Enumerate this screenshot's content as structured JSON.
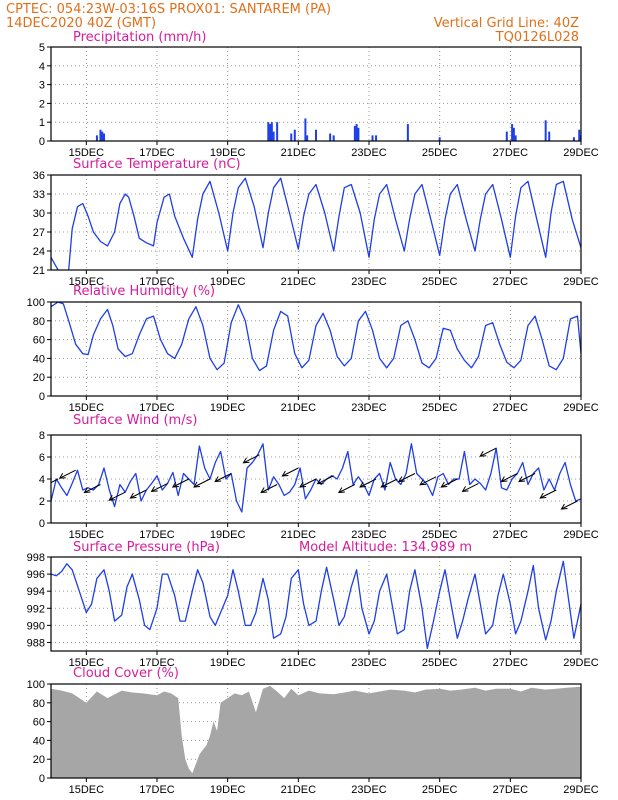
{
  "header": {
    "left_line1": "CPTEC:   054:23W-03:16S   PROX01: SANTAREM (PA)",
    "left_line2": "14DEC2020  40Z (GMT)",
    "right_line2": "Vertical Grid Line: 40Z",
    "right_line3": "TQ0126L028"
  },
  "colors": {
    "header": "#e0701a",
    "title": "#d81b9b",
    "series": "#1f3fe6",
    "cloud": "#a6a6a6",
    "grid": "#999999"
  },
  "x_axis": {
    "start_day": 14,
    "end_day": 29,
    "tick_days": [
      15,
      17,
      19,
      21,
      23,
      25,
      27,
      29
    ],
    "tick_labels": [
      "15DEC",
      "17DEC",
      "19DEC",
      "21DEC",
      "23DEC",
      "25DEC",
      "27DEC",
      "29DEC"
    ]
  },
  "chart_data": [
    {
      "type": "bar",
      "title": "Precipitation (mm/h)",
      "ylim": [
        0,
        5
      ],
      "yticks": [
        0,
        1,
        2,
        3,
        4,
        5
      ],
      "grid": true,
      "x": [
        15.3,
        15.4,
        15.45,
        15.5,
        20.15,
        20.2,
        20.25,
        20.3,
        20.4,
        20.8,
        20.9,
        21.2,
        21.25,
        21.5,
        21.9,
        22.0,
        22.6,
        22.65,
        22.7,
        23.1,
        23.2,
        24.1,
        25.0,
        26.9,
        27.05,
        27.1,
        27.15,
        28.0,
        28.1,
        28.8,
        28.95,
        29.0
      ],
      "values": [
        0.3,
        0.6,
        0.5,
        0.4,
        1.0,
        0.9,
        1.0,
        0.5,
        1.0,
        0.4,
        0.6,
        1.2,
        0.3,
        0.6,
        0.4,
        0.3,
        0.8,
        0.9,
        0.7,
        0.3,
        0.3,
        0.9,
        0.2,
        0.5,
        0.9,
        0.7,
        0.3,
        1.1,
        0.5,
        0.2,
        0.6,
        0.3
      ]
    },
    {
      "type": "line",
      "title": "Surface Temperature (nC)",
      "ylim": [
        21,
        36
      ],
      "yticks": [
        21,
        24,
        27,
        30,
        33,
        36
      ],
      "grid": true,
      "series": [
        {
          "x": [
            14.0,
            14.1,
            14.2,
            14.3,
            14.5,
            14.6,
            14.75,
            14.9,
            15.05,
            15.2,
            15.4,
            15.6,
            15.8,
            15.95,
            16.1,
            16.2,
            16.35,
            16.5,
            16.7,
            16.9,
            17.0,
            17.2,
            17.35,
            17.5,
            17.75,
            18.0,
            18.15,
            18.3,
            18.5,
            18.75,
            19.0,
            19.15,
            19.3,
            19.5,
            19.75,
            20.0,
            20.15,
            20.3,
            20.5,
            20.75,
            21.0,
            21.15,
            21.3,
            21.5,
            21.75,
            22.0,
            22.15,
            22.3,
            22.5,
            22.75,
            23.0,
            23.15,
            23.3,
            23.5,
            23.75,
            24.0,
            24.15,
            24.3,
            24.5,
            24.75,
            25.0,
            25.15,
            25.3,
            25.5,
            25.75,
            26.0,
            26.15,
            26.3,
            26.5,
            26.75,
            27.0,
            27.15,
            27.3,
            27.5,
            27.75,
            28.0,
            28.15,
            28.3,
            28.5,
            28.75,
            29.0
          ],
          "values": [
            23.0,
            22.0,
            21.0,
            20.7,
            21.0,
            27.5,
            31.0,
            31.5,
            29.5,
            27.0,
            25.5,
            24.8,
            27.0,
            31.5,
            33.0,
            32.5,
            29.5,
            26.0,
            25.3,
            24.8,
            28.5,
            32.5,
            33.0,
            29.5,
            26.0,
            23.0,
            29.0,
            33.0,
            35.0,
            30.0,
            24.0,
            30.0,
            34.0,
            35.5,
            31.0,
            24.5,
            30.0,
            34.0,
            35.5,
            30.0,
            24.3,
            29.5,
            33.0,
            34.5,
            30.0,
            24.0,
            29.5,
            34.0,
            34.5,
            30.0,
            23.0,
            29.0,
            33.0,
            34.5,
            29.0,
            24.0,
            29.0,
            33.0,
            34.5,
            29.0,
            23.3,
            29.0,
            33.0,
            34.5,
            29.0,
            24.0,
            29.0,
            33.0,
            34.5,
            29.0,
            23.0,
            29.5,
            34.0,
            35.0,
            29.0,
            23.0,
            30.0,
            34.5,
            35.0,
            29.0,
            24.5
          ]
        }
      ]
    },
    {
      "type": "line",
      "title": "Relative Humidity (%)",
      "ylim": [
        0,
        100
      ],
      "yticks": [
        0,
        20,
        40,
        60,
        80,
        100
      ],
      "grid": true,
      "series": [
        {
          "x": [
            14.0,
            14.2,
            14.35,
            14.5,
            14.7,
            14.9,
            15.05,
            15.2,
            15.4,
            15.6,
            15.75,
            15.9,
            16.1,
            16.3,
            16.5,
            16.7,
            16.9,
            17.1,
            17.3,
            17.5,
            17.7,
            17.9,
            18.1,
            18.3,
            18.5,
            18.7,
            18.9,
            19.1,
            19.3,
            19.5,
            19.7,
            19.9,
            20.1,
            20.3,
            20.5,
            20.7,
            20.9,
            21.1,
            21.3,
            21.5,
            21.7,
            21.9,
            22.1,
            22.3,
            22.5,
            22.7,
            22.9,
            23.1,
            23.3,
            23.5,
            23.7,
            23.9,
            24.1,
            24.3,
            24.5,
            24.7,
            24.9,
            25.1,
            25.3,
            25.5,
            25.7,
            25.9,
            26.1,
            26.3,
            26.5,
            26.7,
            26.9,
            27.1,
            27.3,
            27.5,
            27.7,
            27.9,
            28.1,
            28.3,
            28.5,
            28.7,
            28.9,
            29.0
          ],
          "values": [
            95,
            100,
            98,
            80,
            55,
            45,
            44,
            65,
            82,
            92,
            75,
            50,
            42,
            45,
            65,
            82,
            85,
            60,
            45,
            40,
            55,
            82,
            95,
            75,
            40,
            28,
            35,
            78,
            97,
            80,
            40,
            27,
            32,
            70,
            90,
            85,
            45,
            30,
            38,
            75,
            88,
            70,
            42,
            32,
            40,
            80,
            90,
            70,
            40,
            30,
            40,
            75,
            80,
            60,
            35,
            30,
            40,
            72,
            70,
            50,
            38,
            30,
            42,
            75,
            78,
            55,
            36,
            30,
            38,
            75,
            85,
            60,
            32,
            28,
            40,
            82,
            85,
            45
          ]
        }
      ]
    },
    {
      "type": "line",
      "title": "Surface Wind (m/s)",
      "ylim": [
        0,
        8
      ],
      "yticks": [
        0,
        2,
        4,
        6,
        8
      ],
      "grid": true,
      "series": [
        {
          "x": [
            14.0,
            14.15,
            14.3,
            14.45,
            14.6,
            14.75,
            14.9,
            15.05,
            15.2,
            15.35,
            15.5,
            15.65,
            15.8,
            15.95,
            16.1,
            16.25,
            16.4,
            16.55,
            16.7,
            16.85,
            17.0,
            17.15,
            17.3,
            17.45,
            17.6,
            17.75,
            17.9,
            18.05,
            18.2,
            18.35,
            18.5,
            18.65,
            18.8,
            18.95,
            19.1,
            19.25,
            19.4,
            19.55,
            19.7,
            19.85,
            20.0,
            20.15,
            20.3,
            20.45,
            20.6,
            20.75,
            20.9,
            21.05,
            21.2,
            21.35,
            21.5,
            21.65,
            21.8,
            21.95,
            22.1,
            22.25,
            22.4,
            22.55,
            22.7,
            22.85,
            23.0,
            23.15,
            23.3,
            23.45,
            23.6,
            23.75,
            23.9,
            24.05,
            24.2,
            24.35,
            24.5,
            24.65,
            24.8,
            24.95,
            25.1,
            25.25,
            25.4,
            25.55,
            25.7,
            25.85,
            26.0,
            26.15,
            26.3,
            26.45,
            26.6,
            26.75,
            26.9,
            27.05,
            27.2,
            27.35,
            27.5,
            27.65,
            27.8,
            27.95,
            28.1,
            28.25,
            28.4,
            28.55,
            28.7,
            28.85,
            29.0
          ],
          "values": [
            2.0,
            4.0,
            3.2,
            2.5,
            3.6,
            4.8,
            3.0,
            3.2,
            3.0,
            3.5,
            5.0,
            3.0,
            1.5,
            3.5,
            2.8,
            3.8,
            4.5,
            2.0,
            3.0,
            3.6,
            4.3,
            3.0,
            3.6,
            4.6,
            2.5,
            4.5,
            4.0,
            3.5,
            7.0,
            5.0,
            4.0,
            5.5,
            6.5,
            4.0,
            4.5,
            2.0,
            1.0,
            5.0,
            5.5,
            6.2,
            7.2,
            3.0,
            4.2,
            3.5,
            2.5,
            2.8,
            3.5,
            5.0,
            2.2,
            3.0,
            4.0,
            3.5,
            4.0,
            4.3,
            4.0,
            5.0,
            6.5,
            3.5,
            4.2,
            3.5,
            2.5,
            4.0,
            4.5,
            3.0,
            5.5,
            4.0,
            3.5,
            4.5,
            7.2,
            4.5,
            4.0,
            3.5,
            2.5,
            4.2,
            4.5,
            3.5,
            4.0,
            4.0,
            6.5,
            3.5,
            4.0,
            3.6,
            3.0,
            4.5,
            6.8,
            3.2,
            3.0,
            4.0,
            4.5,
            5.5,
            3.5,
            4.5,
            5.0,
            3.0,
            4.0,
            3.0,
            4.5,
            5.5,
            3.5,
            2.0,
            2.2
          ]
        }
      ],
      "wind_arrows_days": [
        14.2,
        14.7,
        15.4,
        16.1,
        16.7,
        17.3,
        17.9,
        18.5,
        19.1,
        19.9,
        20.4,
        21.0,
        21.5,
        22.0,
        22.6,
        23.2,
        23.8,
        24.3,
        24.9,
        25.5,
        26.1,
        26.6,
        27.2,
        27.7,
        28.3,
        28.9
      ]
    },
    {
      "type": "line",
      "title": "Surface Pressure (hPa)",
      "subtitle": "Model Altitude: 134.989 m",
      "ylim": [
        987,
        998
      ],
      "yticks": [
        988,
        990,
        992,
        994,
        996,
        998
      ],
      "grid": true,
      "series": [
        {
          "x": [
            14.0,
            14.15,
            14.3,
            14.45,
            14.6,
            14.8,
            15.0,
            15.15,
            15.3,
            15.5,
            15.65,
            15.8,
            16.0,
            16.15,
            16.3,
            16.5,
            16.65,
            16.8,
            17.0,
            17.15,
            17.3,
            17.5,
            17.65,
            17.8,
            18.0,
            18.15,
            18.3,
            18.5,
            18.65,
            18.8,
            19.0,
            19.15,
            19.3,
            19.5,
            19.65,
            19.8,
            20.0,
            20.15,
            20.3,
            20.5,
            20.65,
            20.8,
            21.0,
            21.15,
            21.3,
            21.5,
            21.65,
            21.8,
            22.0,
            22.15,
            22.3,
            22.5,
            22.65,
            22.8,
            23.0,
            23.15,
            23.3,
            23.5,
            23.65,
            23.8,
            24.0,
            24.15,
            24.3,
            24.5,
            24.65,
            24.8,
            25.0,
            25.15,
            25.3,
            25.5,
            25.65,
            25.8,
            26.0,
            26.15,
            26.3,
            26.5,
            26.65,
            26.8,
            27.0,
            27.15,
            27.3,
            27.5,
            27.65,
            27.8,
            28.0,
            28.15,
            28.3,
            28.5,
            28.65,
            28.8,
            29.0
          ],
          "values": [
            996.0,
            995.8,
            996.3,
            997.2,
            996.5,
            994.0,
            991.5,
            992.5,
            995.5,
            996.5,
            994.0,
            990.5,
            991.2,
            994.5,
            996.0,
            993.0,
            990.0,
            989.5,
            992.0,
            996.0,
            996.0,
            993.5,
            990.5,
            990.5,
            994.0,
            996.5,
            995.0,
            991.0,
            990.0,
            991.5,
            993.5,
            996.5,
            994.0,
            990.0,
            990.0,
            991.5,
            995.5,
            993.0,
            988.5,
            989.0,
            991.0,
            995.5,
            996.5,
            992.5,
            990.0,
            990.5,
            994.0,
            996.8,
            993.0,
            990.0,
            991.0,
            994.5,
            996.5,
            992.0,
            989.0,
            990.5,
            994.0,
            996.0,
            992.5,
            989.0,
            989.5,
            994.0,
            996.5,
            992.0,
            987.3,
            990.0,
            994.0,
            996.5,
            993.0,
            988.5,
            990.5,
            993.0,
            996.0,
            992.5,
            989.0,
            990.0,
            993.5,
            996.0,
            992.5,
            989.0,
            990.5,
            994.0,
            997.0,
            992.0,
            988.3,
            990.5,
            994.0,
            997.5,
            993.0,
            988.5,
            992.5
          ]
        }
      ]
    },
    {
      "type": "area",
      "title": "Cloud Cover (%)",
      "ylim": [
        0,
        100
      ],
      "yticks": [
        0,
        20,
        40,
        60,
        80,
        100
      ],
      "grid": true,
      "series": [
        {
          "x": [
            14.0,
            14.3,
            14.6,
            15.0,
            15.3,
            15.6,
            16.0,
            16.3,
            16.6,
            17.0,
            17.2,
            17.4,
            17.6,
            17.7,
            17.8,
            17.9,
            18.0,
            18.1,
            18.2,
            18.3,
            18.4,
            18.5,
            18.6,
            18.7,
            18.8,
            19.0,
            19.2,
            19.4,
            19.6,
            19.8,
            20.0,
            20.2,
            20.4,
            20.6,
            20.8,
            21.0,
            21.3,
            21.6,
            22.0,
            22.3,
            22.6,
            23.0,
            23.3,
            23.6,
            24.0,
            24.3,
            24.6,
            25.0,
            25.3,
            25.6,
            26.0,
            26.3,
            26.6,
            27.0,
            27.3,
            27.6,
            28.0,
            28.3,
            28.6,
            29.0
          ],
          "values": [
            95,
            93,
            90,
            80,
            92,
            85,
            93,
            91,
            90,
            88,
            92,
            90,
            85,
            45,
            20,
            10,
            5,
            15,
            25,
            30,
            35,
            45,
            60,
            50,
            80,
            85,
            90,
            88,
            92,
            70,
            95,
            98,
            92,
            85,
            95,
            88,
            93,
            90,
            89,
            91,
            93,
            90,
            92,
            94,
            93,
            91,
            94,
            95,
            93,
            94,
            96,
            93,
            95,
            95,
            92,
            96,
            94,
            95,
            96,
            97
          ]
        }
      ]
    }
  ]
}
